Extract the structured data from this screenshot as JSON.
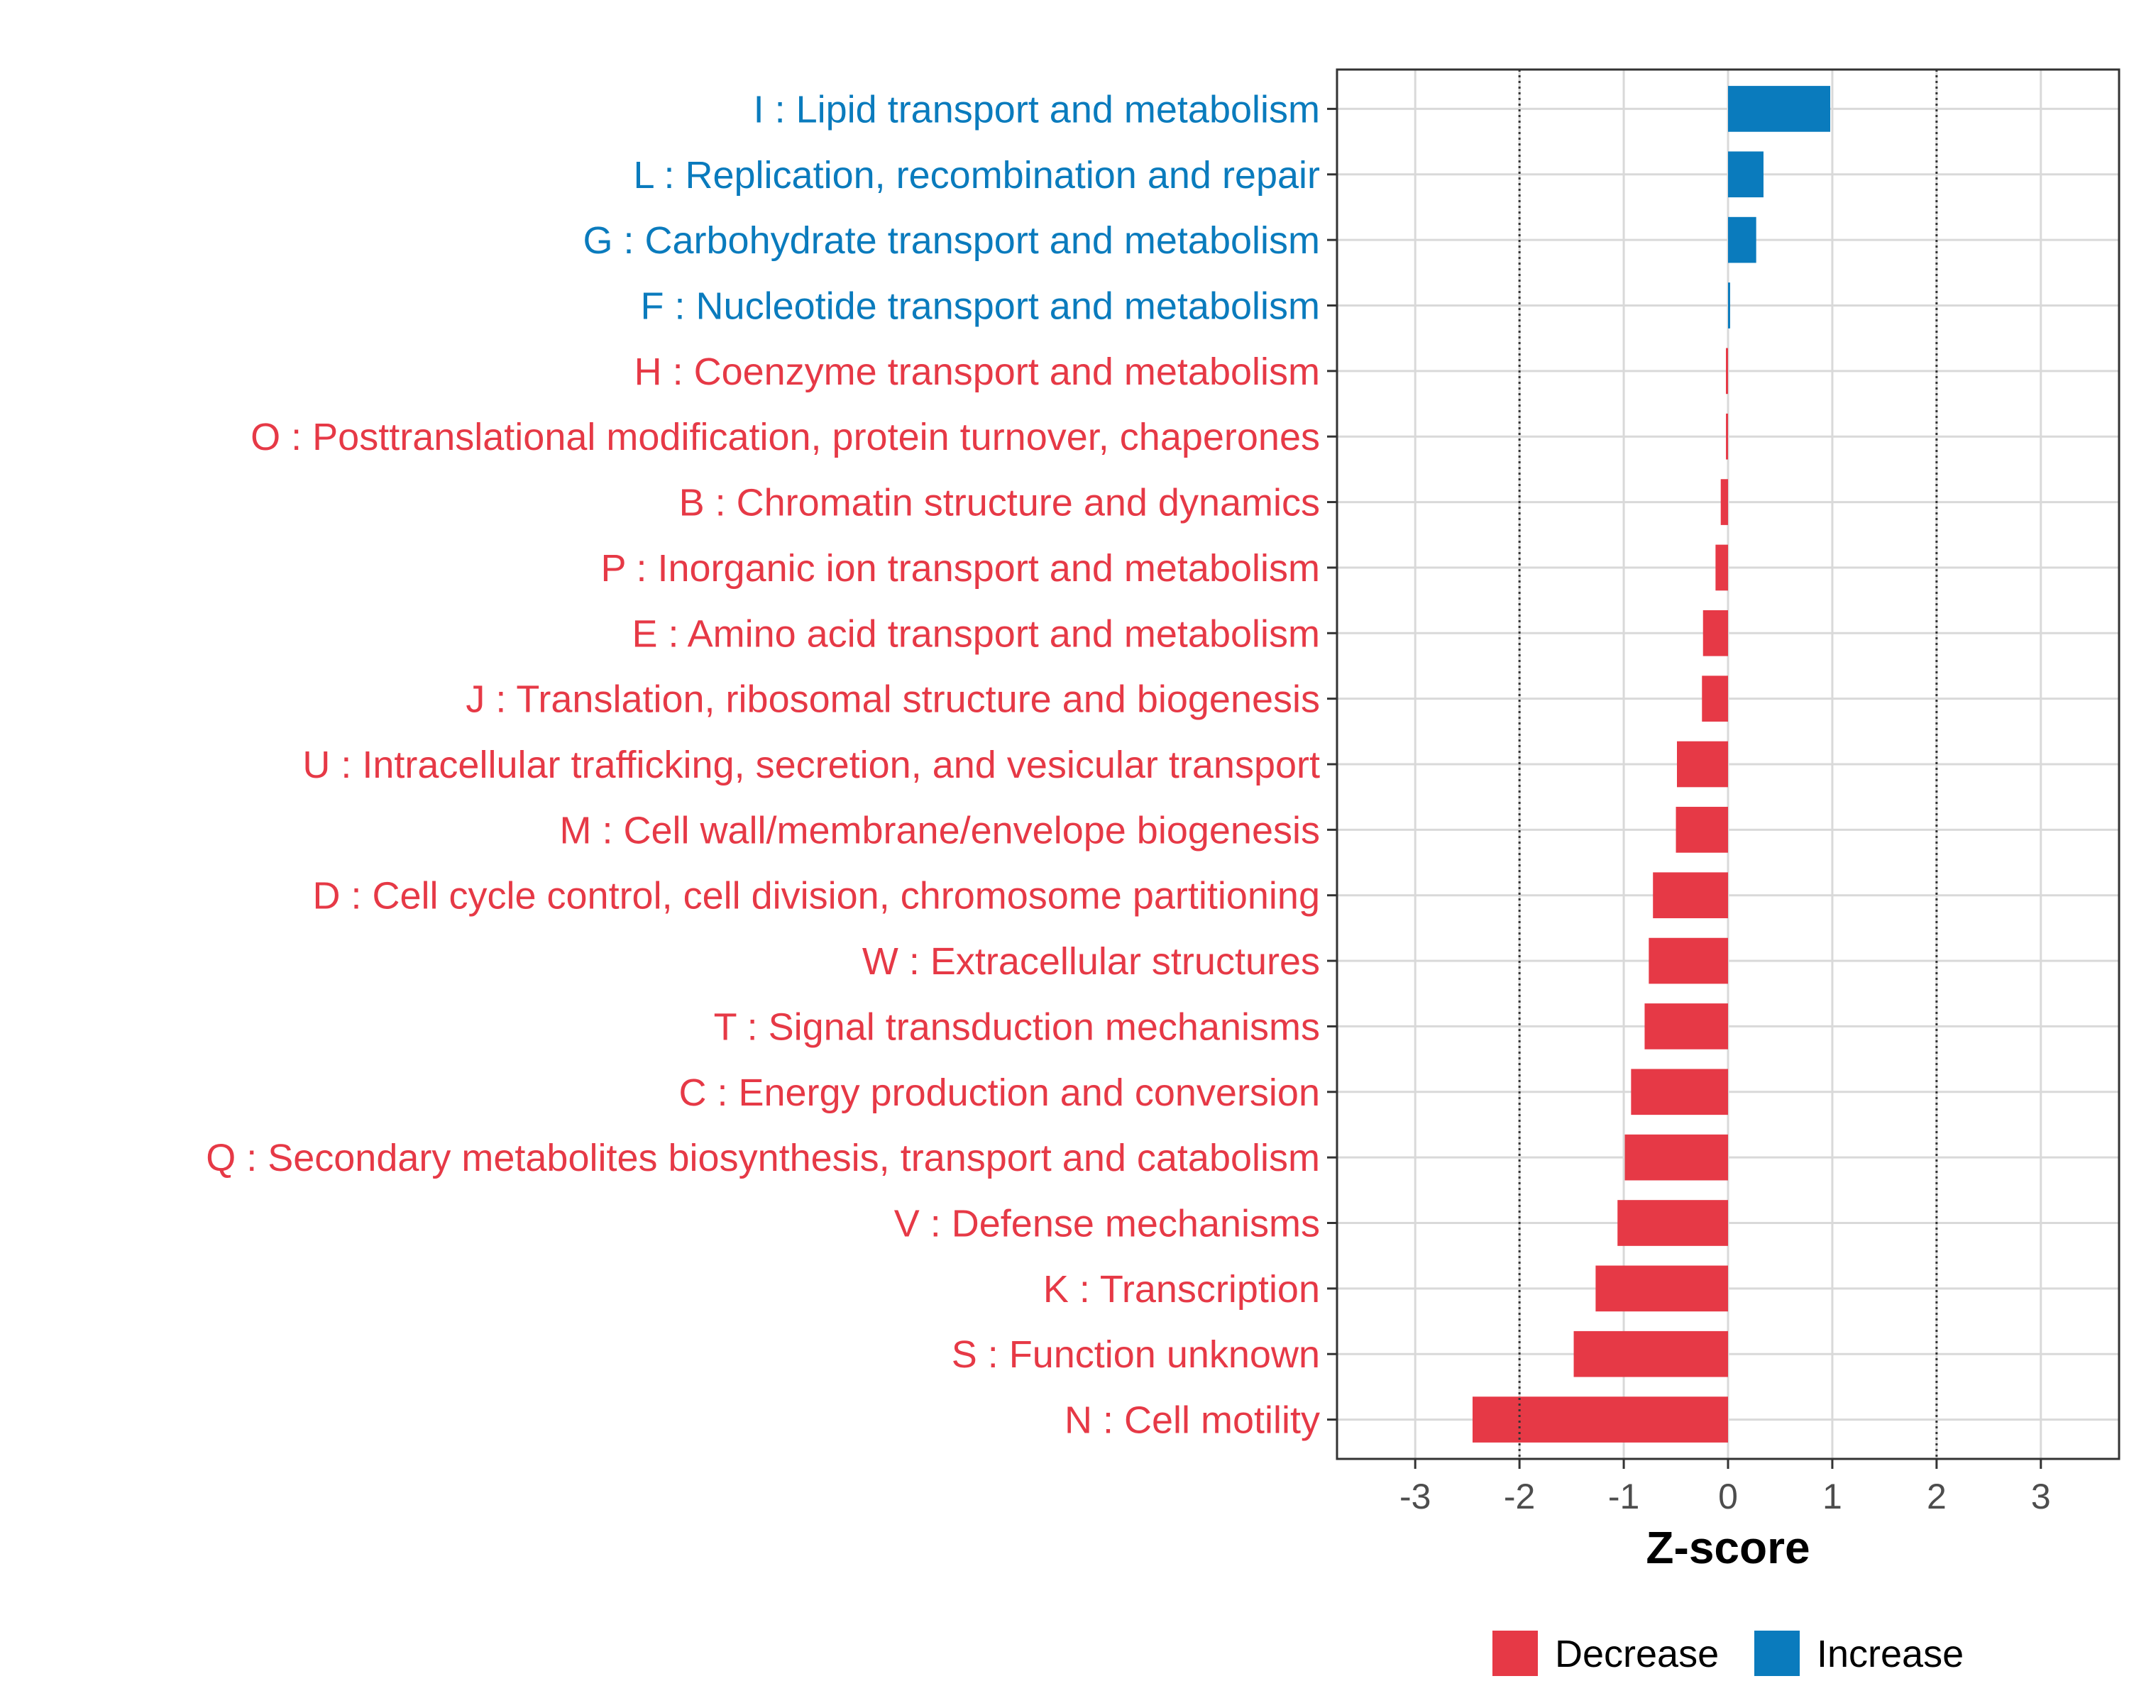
{
  "chart_data": {
    "type": "bar",
    "orientation": "horizontal",
    "title": "",
    "xlabel": "Z-score",
    "ylabel": "",
    "xlim": [
      -3.75,
      3.75
    ],
    "xticks": [
      -3,
      -2,
      -1,
      0,
      1,
      2,
      3
    ],
    "threshold_lines": [
      -2,
      2
    ],
    "grid": true,
    "legend_position": "bottom",
    "colors": {
      "Decrease": "#e63946",
      "Increase": "#0a7bbd"
    },
    "legend": [
      {
        "label": "Decrease",
        "color": "#e63946"
      },
      {
        "label": "Increase",
        "color": "#0a7bbd"
      }
    ],
    "categories": [
      "I : Lipid transport and metabolism",
      "L : Replication, recombination and repair",
      "G : Carbohydrate transport and metabolism",
      "F : Nucleotide transport and metabolism",
      "H : Coenzyme transport and metabolism",
      "O : Posttranslational modification, protein turnover, chaperones",
      "B : Chromatin structure and dynamics",
      "P : Inorganic ion transport and metabolism",
      "E : Amino acid transport and metabolism",
      "J : Translation, ribosomal structure and biogenesis",
      "U : Intracellular trafficking, secretion, and vesicular transport",
      "M : Cell wall/membrane/envelope biogenesis",
      "D : Cell cycle control, cell division, chromosome partitioning",
      "W : Extracellular structures",
      "T : Signal transduction mechanisms",
      "C : Energy production and conversion",
      "Q : Secondary metabolites biosynthesis, transport and catabolism",
      "V : Defense mechanisms",
      "K : Transcription",
      "S : Function unknown",
      "N : Cell motility"
    ],
    "values": [
      0.98,
      0.34,
      0.27,
      0.02,
      -0.01,
      -0.02,
      -0.07,
      -0.12,
      -0.24,
      -0.25,
      -0.49,
      -0.5,
      -0.72,
      -0.76,
      -0.8,
      -0.93,
      -0.99,
      -1.06,
      -1.27,
      -1.48,
      -2.45
    ],
    "groups": [
      "Increase",
      "Increase",
      "Increase",
      "Increase",
      "Decrease",
      "Decrease",
      "Decrease",
      "Decrease",
      "Decrease",
      "Decrease",
      "Decrease",
      "Decrease",
      "Decrease",
      "Decrease",
      "Decrease",
      "Decrease",
      "Decrease",
      "Decrease",
      "Decrease",
      "Decrease",
      "Decrease"
    ]
  }
}
